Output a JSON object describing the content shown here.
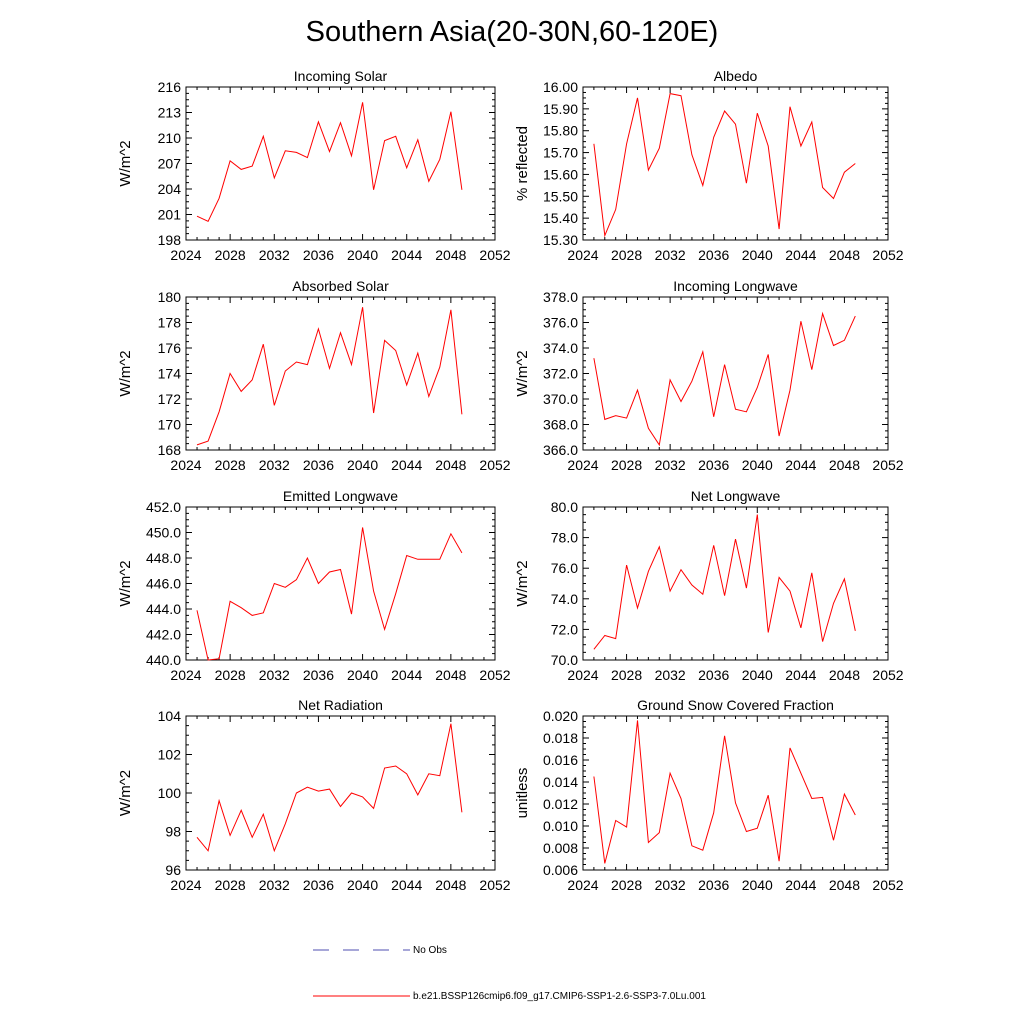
{
  "title": "Southern Asia(20-30N,60-120E)",
  "colors": {
    "model": "#ff0000",
    "obs": "#4f4fb0",
    "frame": "#000000"
  },
  "legend": {
    "obs_label": "No Obs",
    "model_label": "b.e21.BSSP126cmip6.f09_g17.CMIP6-SSP1-2.6-SSP3-7.0Lu.001"
  },
  "chart_data": [
    {
      "type": "line",
      "title": "Incoming Solar",
      "ylabel": "W/m^2",
      "xlim": [
        2024,
        2052
      ],
      "ylim": [
        198,
        216
      ],
      "xticks": [
        "2024",
        "2028",
        "2032",
        "2036",
        "2040",
        "2044",
        "2048",
        "2052"
      ],
      "yticks": [
        "198",
        "201",
        "204",
        "207",
        "210",
        "213",
        "216"
      ],
      "x": [
        2025,
        2026,
        2027,
        2028,
        2029,
        2030,
        2031,
        2032,
        2033,
        2034,
        2035,
        2036,
        2037,
        2038,
        2039,
        2040,
        2041,
        2042,
        2043,
        2044,
        2045,
        2046,
        2047,
        2048,
        2049
      ],
      "values": [
        200.8,
        200.2,
        202.9,
        207.3,
        206.3,
        206.7,
        210.2,
        205.3,
        208.5,
        208.3,
        207.7,
        211.9,
        208.4,
        211.8,
        207.9,
        214.2,
        203.9,
        209.7,
        210.2,
        206.5,
        209.8,
        204.9,
        207.5,
        213.1,
        203.9
      ]
    },
    {
      "type": "line",
      "title": "Albedo",
      "ylabel": "% reflected",
      "xlim": [
        2024,
        2052
      ],
      "ylim": [
        15.3,
        16.0
      ],
      "xticks": [
        "2024",
        "2028",
        "2032",
        "2036",
        "2040",
        "2044",
        "2048",
        "2052"
      ],
      "yticks": [
        "15.30",
        "15.40",
        "15.50",
        "15.60",
        "15.70",
        "15.80",
        "15.90",
        "16.00"
      ],
      "x": [
        2025,
        2026,
        2027,
        2028,
        2029,
        2030,
        2031,
        2032,
        2033,
        2034,
        2035,
        2036,
        2037,
        2038,
        2039,
        2040,
        2041,
        2042,
        2043,
        2044,
        2045,
        2046,
        2047,
        2048,
        2049
      ],
      "values": [
        15.74,
        15.32,
        15.44,
        15.74,
        15.95,
        15.62,
        15.72,
        15.97,
        15.96,
        15.69,
        15.55,
        15.77,
        15.89,
        15.83,
        15.56,
        15.88,
        15.73,
        15.35,
        15.91,
        15.73,
        15.84,
        15.54,
        15.49,
        15.61,
        15.65
      ]
    },
    {
      "type": "line",
      "title": "Absorbed Solar",
      "ylabel": "W/m^2",
      "xlim": [
        2024,
        2052
      ],
      "ylim": [
        168,
        180
      ],
      "xticks": [
        "2024",
        "2028",
        "2032",
        "2036",
        "2040",
        "2044",
        "2048",
        "2052"
      ],
      "yticks": [
        "168",
        "170",
        "172",
        "174",
        "176",
        "178",
        "180"
      ],
      "x": [
        2025,
        2026,
        2027,
        2028,
        2029,
        2030,
        2031,
        2032,
        2033,
        2034,
        2035,
        2036,
        2037,
        2038,
        2039,
        2040,
        2041,
        2042,
        2043,
        2044,
        2045,
        2046,
        2047,
        2048,
        2049
      ],
      "values": [
        168.4,
        168.7,
        171.0,
        174.0,
        172.6,
        173.5,
        176.3,
        171.5,
        174.2,
        174.9,
        174.7,
        177.5,
        174.4,
        177.2,
        174.7,
        179.2,
        170.9,
        176.6,
        175.8,
        173.1,
        175.6,
        172.2,
        174.5,
        179.0,
        170.8
      ]
    },
    {
      "type": "line",
      "title": "Incoming Longwave",
      "ylabel": "W/m^2",
      "xlim": [
        2024,
        2052
      ],
      "ylim": [
        366.0,
        378.0
      ],
      "xticks": [
        "2024",
        "2028",
        "2032",
        "2036",
        "2040",
        "2044",
        "2048",
        "2052"
      ],
      "yticks": [
        "366.0",
        "368.0",
        "370.0",
        "372.0",
        "374.0",
        "376.0",
        "378.0"
      ],
      "x": [
        2025,
        2026,
        2027,
        2028,
        2029,
        2030,
        2031,
        2032,
        2033,
        2034,
        2035,
        2036,
        2037,
        2038,
        2039,
        2040,
        2041,
        2042,
        2043,
        2044,
        2045,
        2046,
        2047,
        2048,
        2049
      ],
      "values": [
        373.2,
        368.4,
        368.7,
        368.5,
        370.7,
        367.7,
        366.4,
        371.5,
        369.8,
        371.4,
        373.7,
        368.6,
        372.7,
        369.2,
        369.0,
        370.9,
        373.5,
        367.1,
        370.7,
        376.1,
        372.3,
        376.7,
        374.2,
        374.6,
        376.5
      ]
    },
    {
      "type": "line",
      "title": "Emitted Longwave",
      "ylabel": "W/m^2",
      "xlim": [
        2024,
        2052
      ],
      "ylim": [
        440.0,
        452.0
      ],
      "xticks": [
        "2024",
        "2028",
        "2032",
        "2036",
        "2040",
        "2044",
        "2048",
        "2052"
      ],
      "yticks": [
        "440.0",
        "442.0",
        "444.0",
        "446.0",
        "448.0",
        "450.0",
        "452.0"
      ],
      "x": [
        2025,
        2026,
        2027,
        2028,
        2029,
        2030,
        2031,
        2032,
        2033,
        2034,
        2035,
        2036,
        2037,
        2038,
        2039,
        2040,
        2041,
        2042,
        2043,
        2044,
        2045,
        2046,
        2047,
        2048,
        2049
      ],
      "values": [
        443.9,
        440.0,
        440.1,
        444.6,
        444.1,
        443.5,
        443.7,
        446.0,
        445.7,
        446.3,
        448.0,
        446.0,
        446.9,
        447.1,
        443.6,
        450.4,
        445.4,
        442.4,
        445.2,
        448.2,
        447.9,
        447.9,
        447.9,
        449.9,
        448.4
      ]
    },
    {
      "type": "line",
      "title": "Net Longwave",
      "ylabel": "W/m^2",
      "xlim": [
        2024,
        2052
      ],
      "ylim": [
        70.0,
        80.0
      ],
      "xticks": [
        "2024",
        "2028",
        "2032",
        "2036",
        "2040",
        "2044",
        "2048",
        "2052"
      ],
      "yticks": [
        "70.0",
        "72.0",
        "74.0",
        "76.0",
        "78.0",
        "80.0"
      ],
      "x": [
        2025,
        2026,
        2027,
        2028,
        2029,
        2030,
        2031,
        2032,
        2033,
        2034,
        2035,
        2036,
        2037,
        2038,
        2039,
        2040,
        2041,
        2042,
        2043,
        2044,
        2045,
        2046,
        2047,
        2048,
        2049
      ],
      "values": [
        70.7,
        71.6,
        71.4,
        76.2,
        73.4,
        75.8,
        77.4,
        74.5,
        75.9,
        74.9,
        74.3,
        77.5,
        74.2,
        77.9,
        74.7,
        79.5,
        71.8,
        75.4,
        74.5,
        72.1,
        75.7,
        71.2,
        73.7,
        75.3,
        71.9
      ]
    },
    {
      "type": "line",
      "title": "Net Radiation",
      "ylabel": "W/m^2",
      "xlim": [
        2024,
        2052
      ],
      "ylim": [
        96,
        104
      ],
      "xticks": [
        "2024",
        "2028",
        "2032",
        "2036",
        "2040",
        "2044",
        "2048",
        "2052"
      ],
      "yticks": [
        "96",
        "98",
        "100",
        "102",
        "104"
      ],
      "x": [
        2025,
        2026,
        2027,
        2028,
        2029,
        2030,
        2031,
        2032,
        2033,
        2034,
        2035,
        2036,
        2037,
        2038,
        2039,
        2040,
        2041,
        2042,
        2043,
        2044,
        2045,
        2046,
        2047,
        2048,
        2049
      ],
      "values": [
        97.7,
        97.0,
        99.6,
        97.8,
        99.1,
        97.7,
        98.9,
        97.0,
        98.4,
        100.0,
        100.3,
        100.1,
        100.2,
        99.3,
        100.0,
        99.8,
        99.2,
        101.3,
        101.4,
        101.0,
        99.9,
        101.0,
        100.9,
        103.6,
        99.0
      ]
    },
    {
      "type": "line",
      "title": "Ground Snow Covered Fraction",
      "ylabel": "unitless",
      "xlim": [
        2024,
        2052
      ],
      "ylim": [
        0.006,
        0.02
      ],
      "xticks": [
        "2024",
        "2028",
        "2032",
        "2036",
        "2040",
        "2044",
        "2048",
        "2052"
      ],
      "yticks": [
        "0.006",
        "0.008",
        "0.010",
        "0.012",
        "0.014",
        "0.016",
        "0.018",
        "0.020"
      ],
      "x": [
        2025,
        2026,
        2027,
        2028,
        2029,
        2030,
        2031,
        2032,
        2033,
        2034,
        2035,
        2036,
        2037,
        2038,
        2039,
        2040,
        2041,
        2042,
        2043,
        2044,
        2045,
        2046,
        2047,
        2048,
        2049
      ],
      "values": [
        0.0145,
        0.0066,
        0.0105,
        0.0099,
        0.0196,
        0.0085,
        0.0094,
        0.0148,
        0.0125,
        0.0082,
        0.0078,
        0.0112,
        0.0182,
        0.0121,
        0.0095,
        0.0098,
        0.0128,
        0.0068,
        0.0171,
        0.0148,
        0.0125,
        0.0126,
        0.0087,
        0.0129,
        0.011
      ]
    }
  ]
}
